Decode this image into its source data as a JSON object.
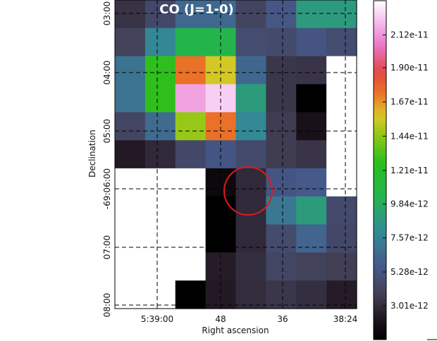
{
  "chart_data": {
    "type": "heatmap",
    "title": "CO (J=1-0)",
    "xlabel": "Right ascension",
    "ylabel": "Declination",
    "x_ticks": [
      "5:39:00",
      "48",
      "36",
      "38:24"
    ],
    "y_ticks": [
      "03:00",
      "04:00",
      "05:00",
      "-69:06:00",
      "07:00",
      "08:00"
    ],
    "colorbar": {
      "ticks": [
        "2.12e-11",
        "1.90e-11",
        "1.67e-11",
        "1.44e-11",
        "1.21e-11",
        "9.84e-12",
        "7.57e-12",
        "5.28e-12",
        "3.01e-12"
      ],
      "vmin": 7.4e-13,
      "vmax": 2.35e-11
    },
    "blank_value": "NaN",
    "grid_units": "flux",
    "values": [
      [
        3.2e-12,
        4.4e-12,
        6.4e-12,
        6.4e-12,
        4.1e-12,
        5.5e-12,
        8.8e-12,
        8.8e-12
      ],
      [
        3.9e-12,
        7.8e-12,
        1.05e-11,
        1.05e-11,
        4.7e-12,
        4.5e-12,
        5.3e-12,
        4.7e-12
      ],
      [
        6.9e-12,
        1.27e-11,
        1.73e-11,
        1.56e-11,
        6.4e-12,
        3.4e-12,
        3.3e-12,
        "NaN"
      ],
      [
        6.9e-12,
        1.27e-11,
        2.15e-11,
        2.25e-11,
        8.9e-12,
        3.4e-12,
        7.4e-13,
        "NaN"
      ],
      [
        4.2e-12,
        6.5e-12,
        1.46e-11,
        1.73e-11,
        7.9e-12,
        3.6e-12,
        1.9e-12,
        "NaN"
      ],
      [
        2.3e-12,
        2.9e-12,
        4.4e-12,
        5.4e-12,
        4.5e-12,
        3.6e-12,
        3.3e-12,
        "NaN"
      ],
      [
        "NaN",
        "NaN",
        "NaN",
        1.3e-12,
        2.9e-12,
        5.4e-12,
        5.7e-12,
        "NaN"
      ],
      [
        "NaN",
        "NaN",
        "NaN",
        7.4e-13,
        2.9e-12,
        7.1e-12,
        8.9e-12,
        4.5e-12
      ],
      [
        "NaN",
        "NaN",
        "NaN",
        7.4e-13,
        2.9e-12,
        4.6e-12,
        6.2e-12,
        4.4e-12
      ],
      [
        "NaN",
        "NaN",
        "NaN",
        2.4e-12,
        3.1e-12,
        4.2e-12,
        3.9e-12,
        3.7e-12
      ],
      [
        "NaN",
        "NaN",
        7.4e-13,
        2.3e-12,
        3e-12,
        3.4e-12,
        3.1e-12,
        2.4e-12
      ]
    ],
    "circle_marker": {
      "color": "#e0191b"
    }
  }
}
